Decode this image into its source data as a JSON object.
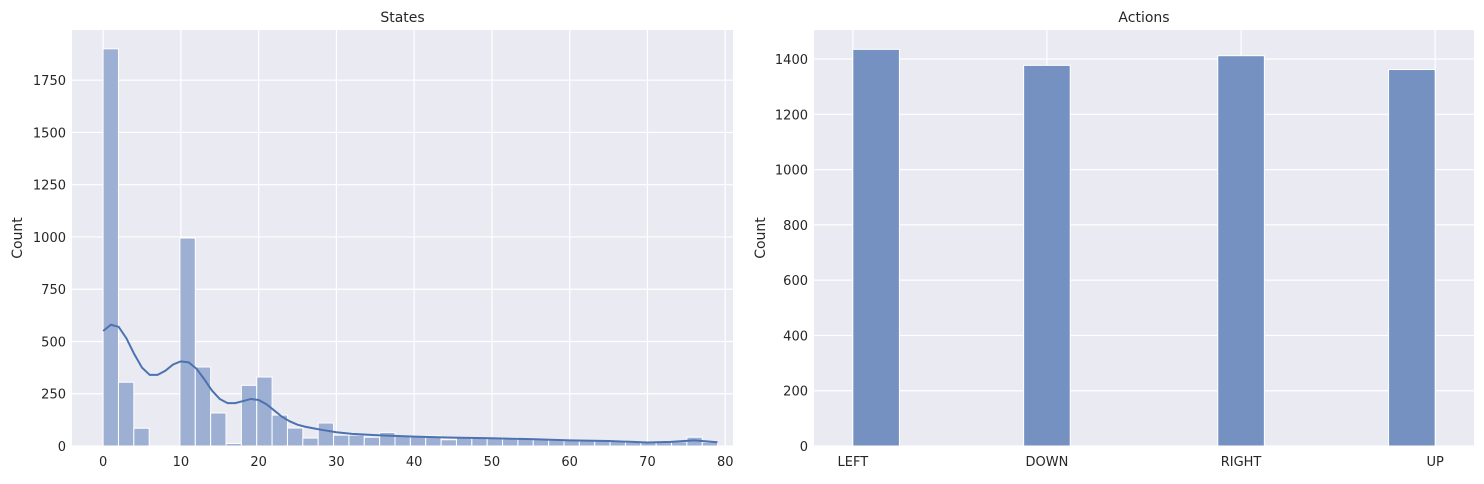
{
  "colors": {
    "panel_bg": "#eaeaf2",
    "grid": "#ffffff",
    "bar_states": "#9eafd4",
    "bar_actions": "#7491c1",
    "kde_line": "#4c72b0"
  },
  "chart_data": [
    {
      "type": "bar",
      "subtype": "histogram",
      "title": "States",
      "xlabel": "",
      "ylabel": "Count",
      "xlim": [
        -4,
        81
      ],
      "ylim": [
        0,
        1990
      ],
      "xticks": [
        "0",
        "10",
        "20",
        "30",
        "40",
        "50",
        "60",
        "70",
        "80"
      ],
      "yticks": [
        "0",
        "250",
        "500",
        "750",
        "1000",
        "1250",
        "1500",
        "1750"
      ],
      "grid": true,
      "bin_width": 1.976,
      "bin_starts": [
        0,
        1.976,
        3.951,
        5.927,
        7.902,
        9.878,
        11.854,
        13.829,
        15.805,
        17.78,
        19.756,
        21.732,
        23.707,
        25.683,
        27.659,
        29.634,
        31.61,
        33.585,
        35.561,
        37.537,
        39.512,
        41.488,
        43.463,
        45.439,
        47.415,
        49.39,
        51.366,
        53.341,
        55.317,
        57.293,
        59.268,
        61.244,
        63.22,
        65.195,
        67.171,
        69.146,
        71.122,
        73.098,
        75.073,
        77.049
      ],
      "values": [
        1900,
        305,
        85,
        0,
        0,
        995,
        378,
        158,
        12,
        290,
        330,
        148,
        86,
        38,
        110,
        52,
        52,
        42,
        65,
        48,
        46,
        48,
        30,
        40,
        38,
        40,
        40,
        36,
        32,
        28,
        28,
        24,
        26,
        26,
        18,
        18,
        18,
        20,
        42,
        18
      ],
      "kde": {
        "x": [
          0,
          1,
          2,
          3,
          4,
          5,
          6,
          7,
          8,
          9,
          10,
          11,
          12,
          13,
          14,
          15,
          16,
          17,
          18,
          19,
          20,
          21,
          22,
          23,
          24,
          25,
          26,
          27,
          28,
          30,
          32,
          35,
          40,
          45,
          50,
          55,
          60,
          65,
          70,
          73,
          76,
          79
        ],
        "y": [
          550,
          580,
          570,
          515,
          440,
          375,
          340,
          340,
          360,
          390,
          405,
          400,
          370,
          320,
          265,
          225,
          205,
          205,
          215,
          225,
          220,
          200,
          170,
          140,
          118,
          102,
          92,
          85,
          78,
          66,
          58,
          52,
          45,
          40,
          37,
          33,
          27,
          24,
          17,
          20,
          27,
          18
        ]
      }
    },
    {
      "type": "bar",
      "subtype": "histogram",
      "title": "Actions",
      "xlabel": "",
      "ylabel": "Count",
      "categories": [
        "LEFT",
        "DOWN",
        "RIGHT",
        "UP"
      ],
      "values": [
        1435,
        1377,
        1412,
        1362
      ],
      "ylim": [
        0,
        1505
      ],
      "yticks": [
        "0",
        "200",
        "400",
        "600",
        "800",
        "1000",
        "1200",
        "1400"
      ],
      "grid": true
    }
  ]
}
